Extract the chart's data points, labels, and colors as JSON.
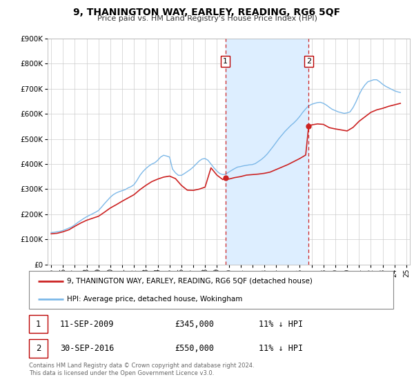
{
  "title": "9, THANINGTON WAY, EARLEY, READING, RG6 5QF",
  "subtitle": "Price paid vs. HM Land Registry's House Price Index (HPI)",
  "ylim": [
    0,
    900000
  ],
  "yticks": [
    0,
    100000,
    200000,
    300000,
    400000,
    500000,
    600000,
    700000,
    800000,
    900000
  ],
  "ytick_labels": [
    "£0",
    "£100K",
    "£200K",
    "£300K",
    "£400K",
    "£500K",
    "£600K",
    "£700K",
    "£800K",
    "£900K"
  ],
  "hpi_color": "#7cb8e8",
  "price_color": "#cc2222",
  "marker1_date": 2009.71,
  "marker1_price": 345000,
  "marker1_label": "11-SEP-2009",
  "marker1_value": "£345,000",
  "marker1_note": "11% ↓ HPI",
  "marker2_date": 2016.75,
  "marker2_price": 550000,
  "marker2_label": "30-SEP-2016",
  "marker2_value": "£550,000",
  "marker2_note": "11% ↓ HPI",
  "shade_color": "#ddeeff",
  "background_color": "#ffffff",
  "grid_color": "#cccccc",
  "legend_label_price": "9, THANINGTON WAY, EARLEY, READING, RG6 5QF (detached house)",
  "legend_label_hpi": "HPI: Average price, detached house, Wokingham",
  "footer": "Contains HM Land Registry data © Crown copyright and database right 2024.\nThis data is licensed under the Open Government Licence v3.0.",
  "hpi_x": [
    1995.0,
    1995.25,
    1995.5,
    1995.75,
    1996.0,
    1996.25,
    1996.5,
    1996.75,
    1997.0,
    1997.25,
    1997.5,
    1997.75,
    1998.0,
    1998.25,
    1998.5,
    1998.75,
    1999.0,
    1999.25,
    1999.5,
    1999.75,
    2000.0,
    2000.25,
    2000.5,
    2000.75,
    2001.0,
    2001.25,
    2001.5,
    2001.75,
    2002.0,
    2002.25,
    2002.5,
    2002.75,
    2003.0,
    2003.25,
    2003.5,
    2003.75,
    2004.0,
    2004.25,
    2004.5,
    2004.75,
    2005.0,
    2005.25,
    2005.5,
    2005.75,
    2006.0,
    2006.25,
    2006.5,
    2006.75,
    2007.0,
    2007.25,
    2007.5,
    2007.75,
    2008.0,
    2008.25,
    2008.5,
    2008.75,
    2009.0,
    2009.25,
    2009.5,
    2009.75,
    2010.0,
    2010.25,
    2010.5,
    2010.75,
    2011.0,
    2011.25,
    2011.5,
    2011.75,
    2012.0,
    2012.25,
    2012.5,
    2012.75,
    2013.0,
    2013.25,
    2013.5,
    2013.75,
    2014.0,
    2014.25,
    2014.5,
    2014.75,
    2015.0,
    2015.25,
    2015.5,
    2015.75,
    2016.0,
    2016.25,
    2016.5,
    2016.75,
    2017.0,
    2017.25,
    2017.5,
    2017.75,
    2018.0,
    2018.25,
    2018.5,
    2018.75,
    2019.0,
    2019.25,
    2019.5,
    2019.75,
    2020.0,
    2020.25,
    2020.5,
    2020.75,
    2021.0,
    2021.25,
    2021.5,
    2021.75,
    2022.0,
    2022.25,
    2022.5,
    2022.75,
    2023.0,
    2023.25,
    2023.5,
    2023.75,
    2024.0,
    2024.25,
    2024.5
  ],
  "hpi_y": [
    127000,
    128000,
    130000,
    132000,
    135000,
    140000,
    145000,
    150000,
    158000,
    167000,
    175000,
    183000,
    190000,
    196000,
    202000,
    208000,
    215000,
    228000,
    242000,
    255000,
    268000,
    278000,
    285000,
    290000,
    294000,
    298000,
    305000,
    310000,
    318000,
    335000,
    355000,
    370000,
    382000,
    392000,
    400000,
    405000,
    415000,
    428000,
    435000,
    432000,
    428000,
    380000,
    365000,
    355000,
    355000,
    362000,
    370000,
    378000,
    388000,
    400000,
    412000,
    420000,
    422000,
    415000,
    400000,
    385000,
    372000,
    362000,
    358000,
    360000,
    368000,
    375000,
    382000,
    388000,
    390000,
    393000,
    395000,
    397000,
    398000,
    402000,
    410000,
    418000,
    428000,
    440000,
    455000,
    470000,
    486000,
    502000,
    516000,
    530000,
    542000,
    554000,
    564000,
    576000,
    590000,
    606000,
    620000,
    632000,
    638000,
    642000,
    645000,
    646000,
    642000,
    635000,
    626000,
    618000,
    613000,
    608000,
    605000,
    602000,
    604000,
    608000,
    625000,
    648000,
    675000,
    698000,
    715000,
    728000,
    732000,
    736000,
    736000,
    728000,
    718000,
    710000,
    704000,
    698000,
    692000,
    688000,
    685000
  ],
  "price_x": [
    1995.0,
    1995.5,
    1996.0,
    1996.5,
    1997.0,
    1997.5,
    1998.0,
    1998.5,
    1999.0,
    1999.5,
    2000.0,
    2000.5,
    2001.0,
    2001.5,
    2002.0,
    2002.5,
    2003.0,
    2003.5,
    2004.0,
    2004.5,
    2005.0,
    2005.5,
    2006.0,
    2006.5,
    2007.0,
    2007.5,
    2008.0,
    2008.5,
    2009.0,
    2009.5,
    2009.71,
    2010.0,
    2010.5,
    2011.0,
    2011.5,
    2012.0,
    2012.5,
    2013.0,
    2013.5,
    2014.0,
    2014.5,
    2015.0,
    2015.5,
    2016.0,
    2016.5,
    2016.75,
    2017.0,
    2017.5,
    2018.0,
    2018.5,
    2019.0,
    2019.5,
    2020.0,
    2020.5,
    2021.0,
    2021.5,
    2022.0,
    2022.5,
    2023.0,
    2023.5,
    2024.0,
    2024.5
  ],
  "price_y": [
    122000,
    124000,
    130000,
    138000,
    152000,
    165000,
    176000,
    184000,
    192000,
    208000,
    225000,
    238000,
    252000,
    265000,
    278000,
    298000,
    315000,
    330000,
    340000,
    348000,
    352000,
    342000,
    315000,
    296000,
    295000,
    300000,
    308000,
    385000,
    356000,
    338000,
    345000,
    340000,
    346000,
    350000,
    356000,
    358000,
    360000,
    363000,
    368000,
    378000,
    388000,
    398000,
    410000,
    422000,
    436000,
    550000,
    556000,
    560000,
    558000,
    545000,
    540000,
    536000,
    532000,
    546000,
    570000,
    588000,
    606000,
    616000,
    622000,
    630000,
    636000,
    642000
  ]
}
